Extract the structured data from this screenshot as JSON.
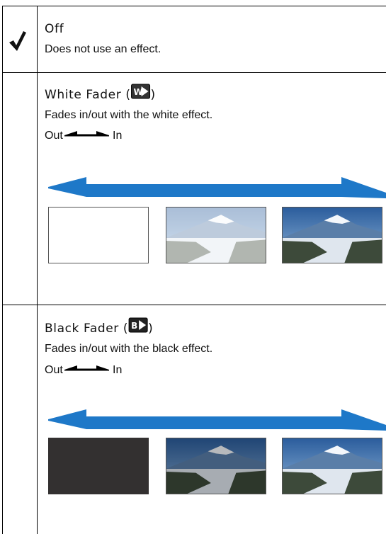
{
  "rows": [
    {
      "title": "Off",
      "description": "Does not use an effect."
    },
    {
      "title": "White Fader (",
      "icon": "W",
      "title_end": ")",
      "description": "Fades in/out with the white effect.",
      "scale_start": "Out",
      "scale_end": "In"
    },
    {
      "title": "Black Fader (",
      "icon": "B",
      "title_end": ")",
      "description": "Fades in/out with the black effect.",
      "scale_start": "Out",
      "scale_end": "In"
    }
  ]
}
